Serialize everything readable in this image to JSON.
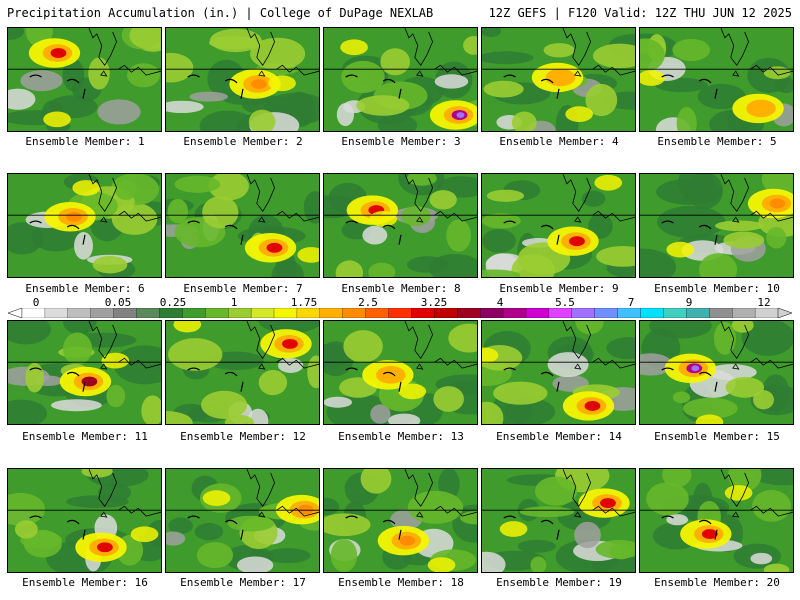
{
  "header": {
    "title_left": "Precipitation Accumulation (in.) | College of DuPage NEXLAB",
    "title_right": "12Z GEFS | F120 Valid: 12Z THU JUN 12 2025"
  },
  "panel_label_prefix": "Ensemble Member: ",
  "members": [
    {
      "id": 1,
      "label": "Ensemble Member: 1",
      "max_inches": 2.5
    },
    {
      "id": 2,
      "label": "Ensemble Member: 2",
      "max_inches": 1.75
    },
    {
      "id": 3,
      "label": "Ensemble Member: 3",
      "max_inches": 5.5
    },
    {
      "id": 4,
      "label": "Ensemble Member: 4",
      "max_inches": 1.5
    },
    {
      "id": 5,
      "label": "Ensemble Member: 5",
      "max_inches": 1.5
    },
    {
      "id": 6,
      "label": "Ensemble Member: 6",
      "max_inches": 1.75
    },
    {
      "id": 7,
      "label": "Ensemble Member: 7",
      "max_inches": 2.5
    },
    {
      "id": 8,
      "label": "Ensemble Member: 8",
      "max_inches": 3.25
    },
    {
      "id": 9,
      "label": "Ensemble Member: 9",
      "max_inches": 3.25
    },
    {
      "id": 10,
      "label": "Ensemble Member: 10",
      "max_inches": 2.0
    },
    {
      "id": 11,
      "label": "Ensemble Member: 11",
      "max_inches": 4.0
    },
    {
      "id": 12,
      "label": "Ensemble Member: 12",
      "max_inches": 3.25
    },
    {
      "id": 13,
      "label": "Ensemble Member: 13",
      "max_inches": 1.5
    },
    {
      "id": 14,
      "label": "Ensemble Member: 14",
      "max_inches": 2.5
    },
    {
      "id": 15,
      "label": "Ensemble Member: 15",
      "max_inches": 5.5
    },
    {
      "id": 16,
      "label": "Ensemble Member: 16",
      "max_inches": 3.25
    },
    {
      "id": 17,
      "label": "Ensemble Member: 17",
      "max_inches": 2.0
    },
    {
      "id": 18,
      "label": "Ensemble Member: 18",
      "max_inches": 2.0
    },
    {
      "id": 19,
      "label": "Ensemble Member: 19",
      "max_inches": 3.25
    },
    {
      "id": 20,
      "label": "Ensemble Member: 20",
      "max_inches": 3.25
    }
  ],
  "colorbar": {
    "tick_labels": [
      "0",
      "0.05",
      "0.25",
      "1",
      "1.75",
      "2.5",
      "3.25",
      "4",
      "5.5",
      "7",
      "9",
      "12"
    ],
    "colors": [
      "#ffffff",
      "#dcdcdc",
      "#bebebe",
      "#a0a0a0",
      "#828282",
      "#5a8a5a",
      "#2e7d32",
      "#3f9b2b",
      "#66b82a",
      "#9acd32",
      "#d4e82a",
      "#f5f500",
      "#ffd700",
      "#ffb000",
      "#ff8c00",
      "#ff6000",
      "#ff3000",
      "#e00000",
      "#c00000",
      "#a00020",
      "#8b0060",
      "#b0008a",
      "#d000d0",
      "#e040ff",
      "#a070ff",
      "#7090ff",
      "#40c0ff",
      "#00e0ff",
      "#40d0c0",
      "#40b0b0",
      "#909090",
      "#b0b0b0",
      "#d0d0d0"
    ]
  },
  "palette": {
    "dark_green": "#2e7d32",
    "green": "#3f9b2b",
    "light_green": "#66b82a",
    "yellow_green": "#9acd32",
    "yellow": "#f5f500",
    "orange": "#ffb000",
    "dark_orange": "#ff8c00",
    "red": "#e00000",
    "dark_red": "#a00020",
    "magenta": "#b0008a",
    "purple": "#a070ff",
    "gray": "#a0a0a0",
    "light_gray": "#dcdcdc"
  }
}
